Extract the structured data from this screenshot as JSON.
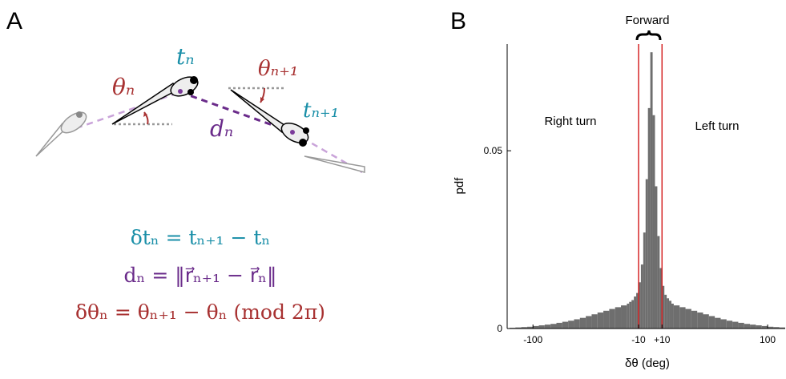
{
  "panel_a": {
    "label": "A",
    "labels": {
      "t_n": "tₙ",
      "theta_n": "θₙ",
      "d_n": "dₙ",
      "theta_n1": "θₙ₊₁",
      "t_n1": "tₙ₊₁"
    },
    "equations": [
      "δtₙ = tₙ₊₁ − tₙ",
      "dₙ = ‖r⃗ₙ₊₁ − r⃗ₙ‖",
      "δθₙ = θₙ₊₁ − θₙ  (mod 2π)"
    ]
  },
  "chart_data": {
    "type": "histogram",
    "panel_label": "B",
    "xlabel": "δθ (deg)",
    "ylabel": "pdf",
    "color": "#6e6e6e",
    "annotations": {
      "forward": "Forward",
      "right": "Right turn",
      "left": "Left turn"
    },
    "threshold_lines": {
      "values": [
        -10,
        10
      ],
      "color": "#d62728"
    },
    "xlim": [
      -122,
      115
    ],
    "ylim": [
      0,
      0.08
    ],
    "xticks": [
      -100,
      -10,
      {
        "value": 10,
        "label": "+10"
      },
      100
    ],
    "yticks": [
      0,
      0.05
    ],
    "bins": [
      -120,
      -115,
      -110,
      -105,
      -100,
      -95,
      -90,
      -85,
      -80,
      -75,
      -70,
      -65,
      -60,
      -55,
      -50,
      -45,
      -40,
      -35,
      -30,
      -25,
      -20,
      -18,
      -16,
      -14,
      -12,
      -10,
      -8,
      -6,
      -4,
      -2,
      0,
      2,
      4,
      6,
      8,
      10,
      12,
      14,
      16,
      18,
      20,
      25,
      30,
      35,
      40,
      45,
      50,
      55,
      60,
      65,
      70,
      75,
      80,
      85,
      90,
      95,
      100,
      105,
      110,
      115
    ],
    "values": [
      0.0002,
      0.0003,
      0.0004,
      0.0005,
      0.0007,
      0.0009,
      0.0011,
      0.0013,
      0.0016,
      0.0019,
      0.0022,
      0.0026,
      0.003,
      0.0035,
      0.004,
      0.0045,
      0.005,
      0.0055,
      0.006,
      0.0065,
      0.007,
      0.0075,
      0.008,
      0.009,
      0.01,
      0.013,
      0.018,
      0.027,
      0.042,
      0.062,
      0.0777,
      0.06,
      0.04,
      0.026,
      0.017,
      0.012,
      0.0095,
      0.0085,
      0.0078,
      0.007,
      0.0065,
      0.006,
      0.0055,
      0.005,
      0.0045,
      0.004,
      0.0035,
      0.003,
      0.0026,
      0.0022,
      0.0019,
      0.0016,
      0.0013,
      0.0011,
      0.0009,
      0.0007,
      0.0005,
      0.0004,
      0.0003
    ]
  }
}
